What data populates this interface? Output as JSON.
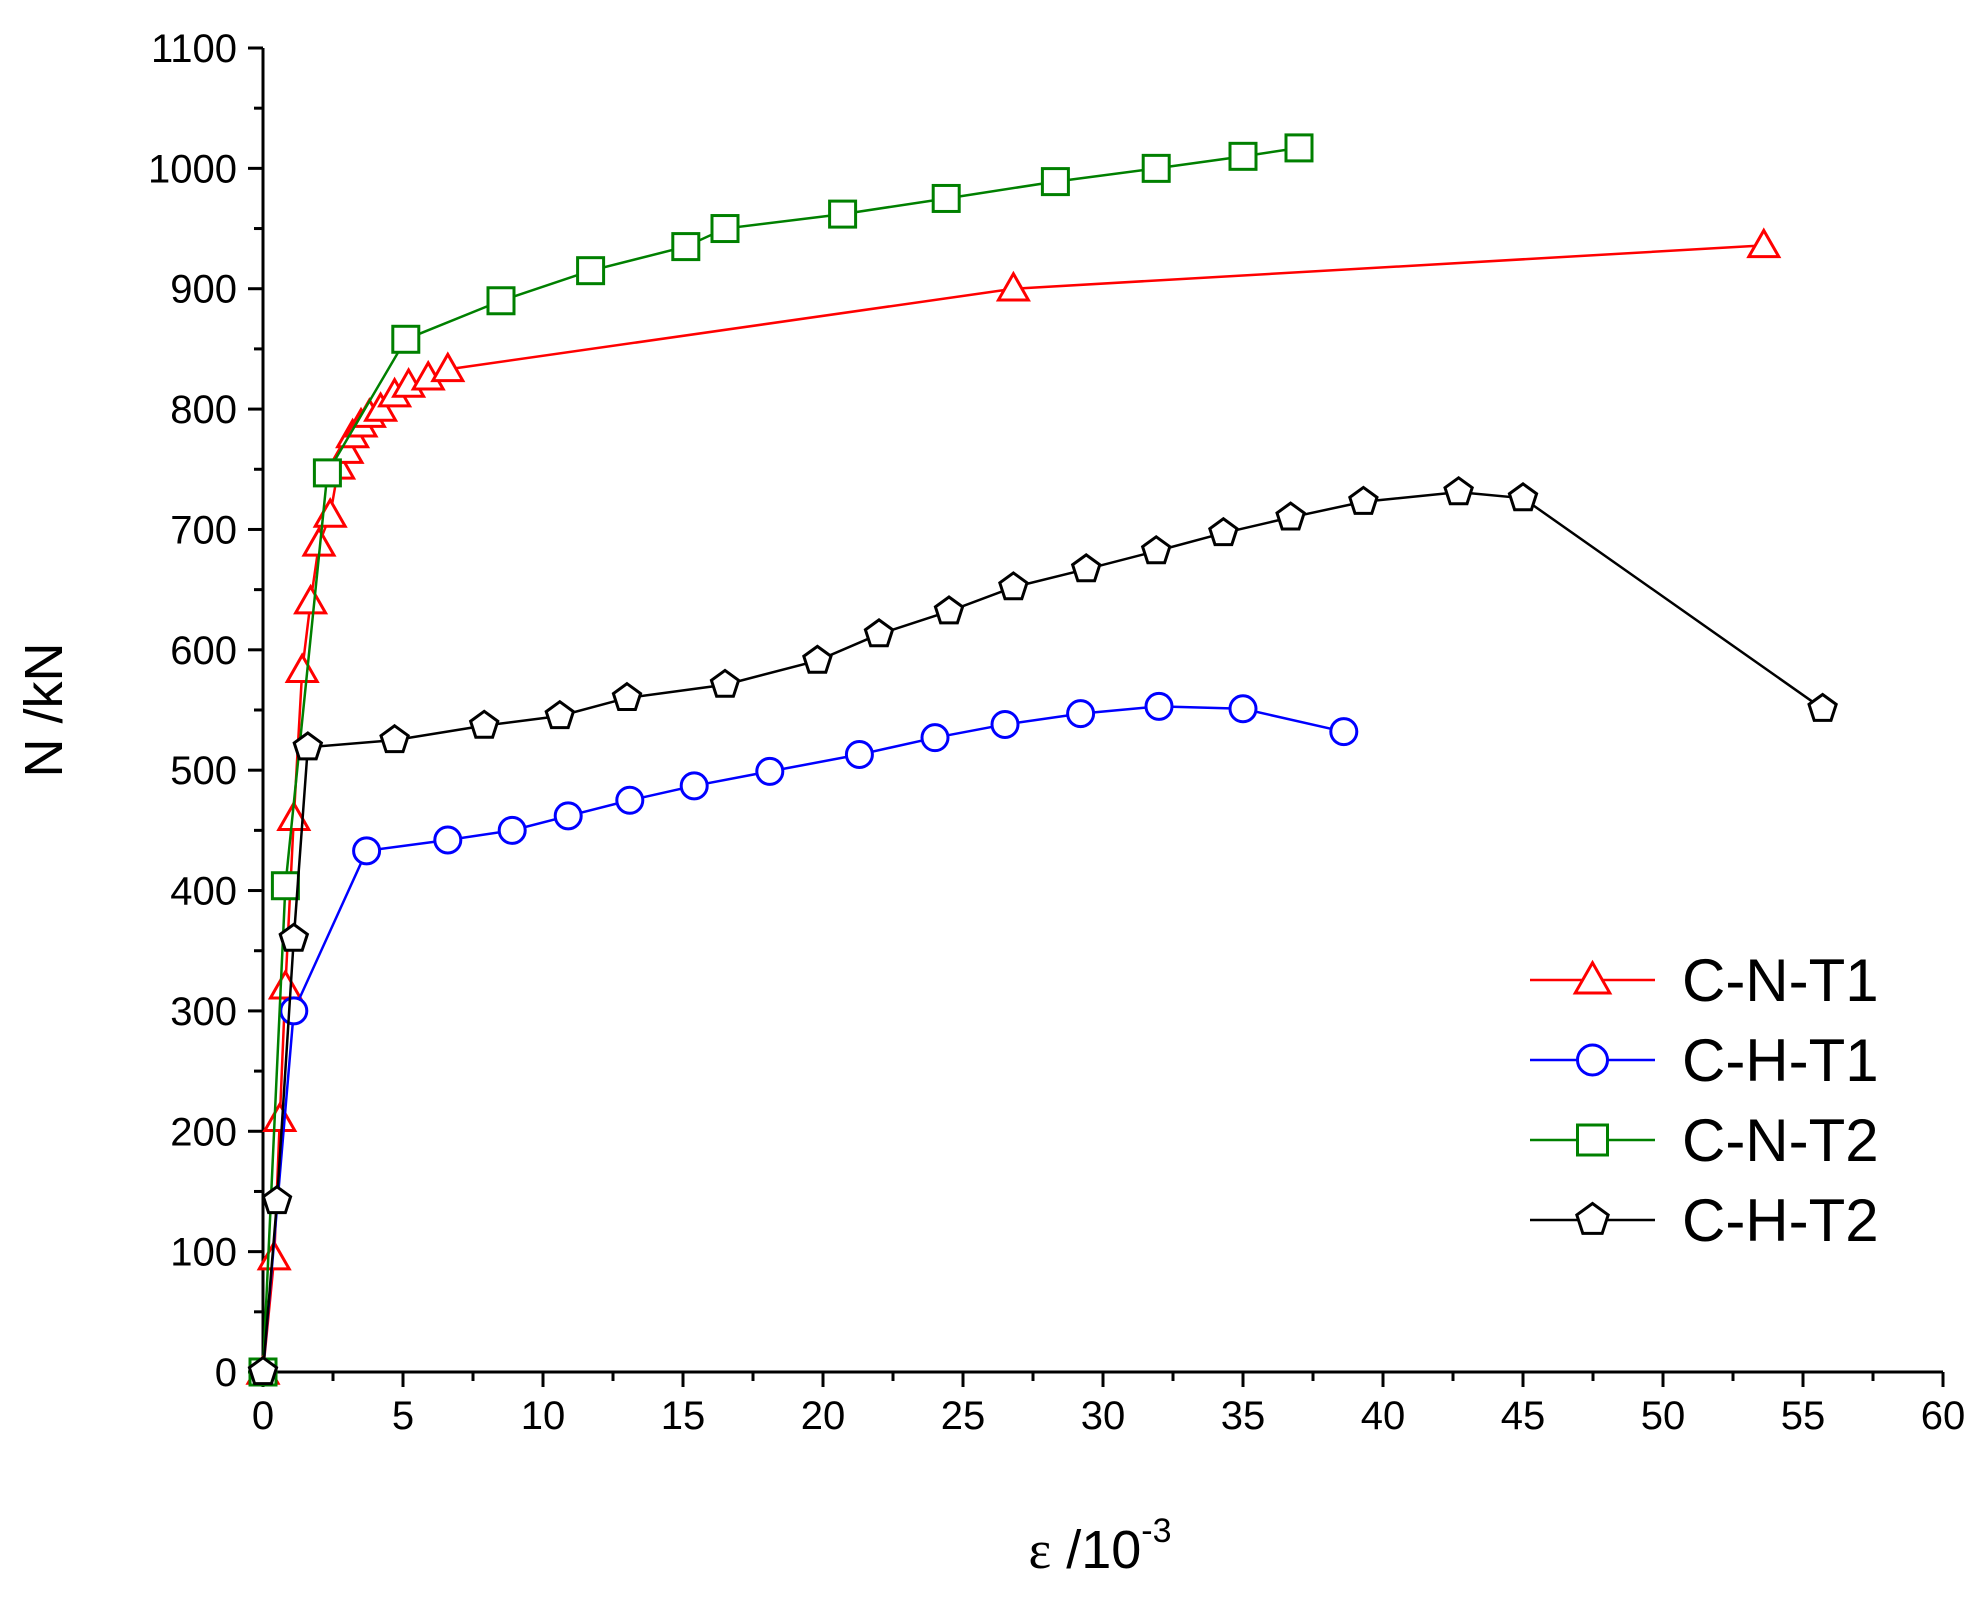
{
  "chart_data": {
    "type": "line",
    "title": "",
    "xlabel": {
      "symbol": "ε",
      "text": " /10",
      "exponent": "-3"
    },
    "ylabel": "N /kN",
    "xlim": [
      0,
      60
    ],
    "ylim": [
      0,
      1100
    ],
    "xticks": [
      0,
      5,
      10,
      15,
      20,
      25,
      30,
      35,
      40,
      45,
      50,
      55,
      60
    ],
    "yticks": [
      0,
      100,
      200,
      300,
      400,
      500,
      600,
      700,
      800,
      900,
      1000,
      1100
    ],
    "legend_position": "right",
    "series": [
      {
        "name": "C-N-T1",
        "color": "#ff0000",
        "marker": "triangle",
        "x": [
          0,
          0.4,
          0.6,
          0.8,
          1.1,
          1.4,
          1.7,
          2.0,
          2.4,
          2.7,
          3.0,
          3.2,
          3.5,
          3.8,
          4.2,
          4.7,
          5.2,
          5.9,
          6.6,
          26.8,
          53.6
        ],
        "y": [
          0,
          95,
          210,
          320,
          460,
          583,
          640,
          688,
          712,
          752,
          765,
          778,
          787,
          795,
          800,
          812,
          820,
          826,
          833,
          900,
          936
        ]
      },
      {
        "name": "C-H-T1",
        "color": "#0000ff",
        "marker": "circle",
        "x": [
          0,
          1.1,
          3.7,
          6.6,
          8.9,
          10.9,
          13.1,
          15.4,
          18.1,
          21.3,
          24.0,
          26.5,
          29.2,
          32.0,
          35.0,
          38.6
        ],
        "y": [
          0,
          300,
          433,
          442,
          450,
          462,
          475,
          487,
          499,
          513,
          527,
          538,
          547,
          553,
          551,
          532
        ]
      },
      {
        "name": "C-N-T2",
        "color": "#008000",
        "marker": "square",
        "x": [
          0,
          0.8,
          2.3,
          5.1,
          8.5,
          11.7,
          15.1,
          16.5,
          20.7,
          24.4,
          28.3,
          31.9,
          35.0,
          37.0
        ],
        "y": [
          0,
          404,
          747,
          858,
          890,
          915,
          935,
          950,
          962,
          975,
          989,
          1000,
          1010,
          1017
        ]
      },
      {
        "name": "C-H-T2",
        "color": "#000000",
        "marker": "pentagon",
        "x": [
          0,
          0.5,
          1.1,
          1.6,
          4.7,
          7.9,
          10.6,
          13.0,
          16.5,
          19.8,
          22.0,
          24.5,
          26.8,
          29.4,
          31.9,
          34.3,
          36.7,
          39.3,
          42.7,
          45.0,
          55.7
        ],
        "y": [
          0,
          142,
          360,
          519,
          525,
          537,
          545,
          560,
          571,
          591,
          613,
          632,
          652,
          667,
          682,
          697,
          710,
          723,
          731,
          726,
          551
        ]
      }
    ]
  }
}
